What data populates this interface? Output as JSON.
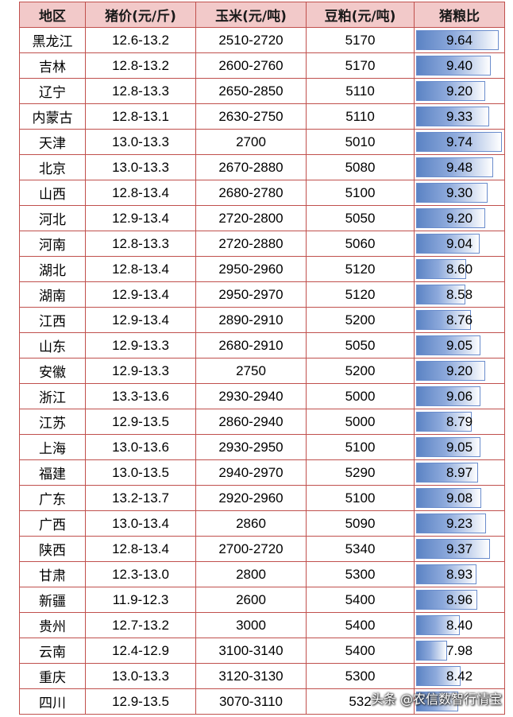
{
  "table": {
    "headers": [
      "地区",
      "猪价(元/斤)",
      "玉米(元/吨)",
      "豆粕(元/吨)",
      "猪粮比"
    ],
    "rows": [
      {
        "region": "黑龙江",
        "pig_price": "12.6-13.2",
        "corn": "2510-2720",
        "soymeal": "5170",
        "ratio": "9.64",
        "ratio_value": 9.64
      },
      {
        "region": "吉林",
        "pig_price": "12.8-13.2",
        "corn": "2600-2760",
        "soymeal": "5170",
        "ratio": "9.40",
        "ratio_value": 9.4
      },
      {
        "region": "辽宁",
        "pig_price": "12.8-13.3",
        "corn": "2650-2850",
        "soymeal": "5110",
        "ratio": "9.20",
        "ratio_value": 9.2
      },
      {
        "region": "内蒙古",
        "pig_price": "12.8-13.1",
        "corn": "2630-2750",
        "soymeal": "5110",
        "ratio": "9.33",
        "ratio_value": 9.33
      },
      {
        "region": "天津",
        "pig_price": "13.0-13.3",
        "corn": "2700",
        "soymeal": "5010",
        "ratio": "9.74",
        "ratio_value": 9.74
      },
      {
        "region": "北京",
        "pig_price": "13.0-13.3",
        "corn": "2670-2880",
        "soymeal": "5080",
        "ratio": "9.48",
        "ratio_value": 9.48
      },
      {
        "region": "山西",
        "pig_price": "12.8-13.4",
        "corn": "2680-2780",
        "soymeal": "5100",
        "ratio": "9.30",
        "ratio_value": 9.3
      },
      {
        "region": "河北",
        "pig_price": "12.9-13.4",
        "corn": "2720-2800",
        "soymeal": "5050",
        "ratio": "9.20",
        "ratio_value": 9.2
      },
      {
        "region": "河南",
        "pig_price": "12.8-13.3",
        "corn": "2720-2880",
        "soymeal": "5060",
        "ratio": "9.04",
        "ratio_value": 9.04
      },
      {
        "region": "湖北",
        "pig_price": "12.8-13.4",
        "corn": "2950-2960",
        "soymeal": "5120",
        "ratio": "8.60",
        "ratio_value": 8.6
      },
      {
        "region": "湖南",
        "pig_price": "12.9-13.4",
        "corn": "2950-2970",
        "soymeal": "5120",
        "ratio": "8.58",
        "ratio_value": 8.58
      },
      {
        "region": "江西",
        "pig_price": "12.9-13.4",
        "corn": "2890-2910",
        "soymeal": "5200",
        "ratio": "8.76",
        "ratio_value": 8.76
      },
      {
        "region": "山东",
        "pig_price": "12.9-13.3",
        "corn": "2680-2910",
        "soymeal": "5050",
        "ratio": "9.05",
        "ratio_value": 9.05
      },
      {
        "region": "安徽",
        "pig_price": "12.9-13.3",
        "corn": "2750",
        "soymeal": "5200",
        "ratio": "9.20",
        "ratio_value": 9.2
      },
      {
        "region": "浙江",
        "pig_price": "13.3-13.6",
        "corn": "2930-2940",
        "soymeal": "5000",
        "ratio": "9.06",
        "ratio_value": 9.06
      },
      {
        "region": "江苏",
        "pig_price": "12.9-13.5",
        "corn": "2860-2940",
        "soymeal": "5000",
        "ratio": "8.79",
        "ratio_value": 8.79
      },
      {
        "region": "上海",
        "pig_price": "13.0-13.6",
        "corn": "2930-2950",
        "soymeal": "5100",
        "ratio": "9.05",
        "ratio_value": 9.05
      },
      {
        "region": "福建",
        "pig_price": "13.0-13.5",
        "corn": "2940-2970",
        "soymeal": "5290",
        "ratio": "8.97",
        "ratio_value": 8.97
      },
      {
        "region": "广东",
        "pig_price": "13.2-13.7",
        "corn": "2920-2960",
        "soymeal": "5100",
        "ratio": "9.08",
        "ratio_value": 9.08
      },
      {
        "region": "广西",
        "pig_price": "13.0-13.4",
        "corn": "2860",
        "soymeal": "5090",
        "ratio": "9.23",
        "ratio_value": 9.23
      },
      {
        "region": "陕西",
        "pig_price": "12.8-13.4",
        "corn": "2700-2720",
        "soymeal": "5340",
        "ratio": "9.37",
        "ratio_value": 9.37
      },
      {
        "region": "甘肃",
        "pig_price": "12.3-13.0",
        "corn": "2800",
        "soymeal": "5300",
        "ratio": "8.93",
        "ratio_value": 8.93
      },
      {
        "region": "新疆",
        "pig_price": "11.9-12.3",
        "corn": "2600",
        "soymeal": "5400",
        "ratio": "8.96",
        "ratio_value": 8.96
      },
      {
        "region": "贵州",
        "pig_price": "12.7-13.2",
        "corn": "3000",
        "soymeal": "5400",
        "ratio": "8.40",
        "ratio_value": 8.4
      },
      {
        "region": "云南",
        "pig_price": "12.4-12.9",
        "corn": "3100-3140",
        "soymeal": "5400",
        "ratio": "7.98",
        "ratio_value": 7.98
      },
      {
        "region": "重庆",
        "pig_price": "13.0-13.3",
        "corn": "3120-3130",
        "soymeal": "5300",
        "ratio": "8.42",
        "ratio_value": 8.42
      },
      {
        "region": "四川",
        "pig_price": "12.9-13.5",
        "corn": "3070-3110",
        "soymeal": "532",
        "ratio": "",
        "ratio_value": 8.35
      }
    ]
  },
  "watermark": "头条 @农信数智行情宝"
}
